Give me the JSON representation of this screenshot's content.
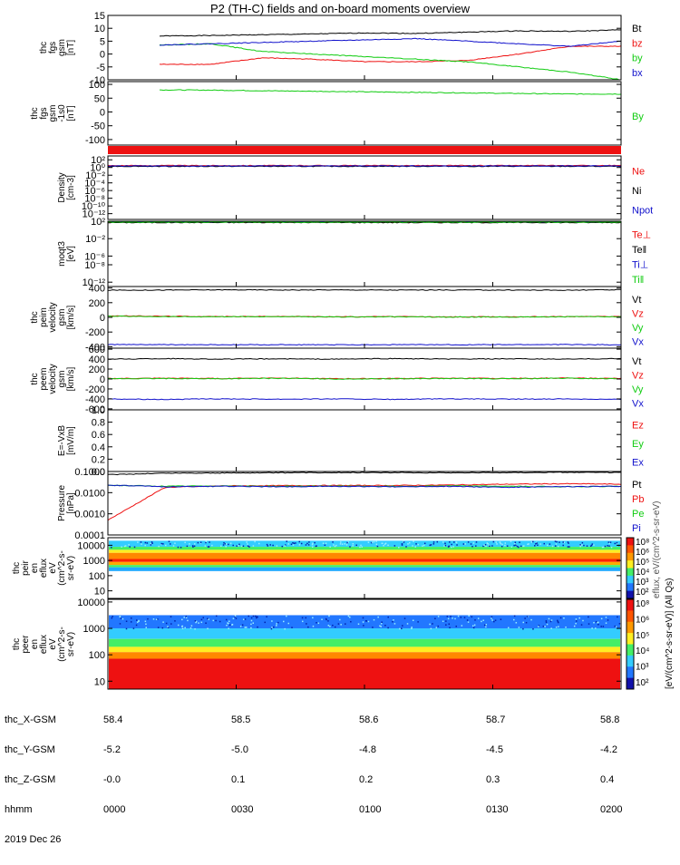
{
  "title": "P2 (TH-C) fields and on-board moments overview",
  "colors": {
    "black": "#000000",
    "red": "#ee1111",
    "green": "#11cc11",
    "blue": "#1111cc"
  },
  "footer": {
    "row_labels": [
      "thc_X-GSM",
      "thc_Y-GSM",
      "thc_Z-GSM",
      "hhmm",
      "2019 Dec 26"
    ],
    "columns": [
      [
        "58.4",
        "-5.2",
        "-0.0",
        "0000"
      ],
      [
        "58.5",
        "-5.0",
        "0.1",
        "0030"
      ],
      [
        "58.6",
        "-4.8",
        "0.2",
        "0100"
      ],
      [
        "58.7",
        "-4.5",
        "0.3",
        "0130"
      ],
      [
        "58.8",
        "-4.2",
        "0.4",
        "0200"
      ]
    ]
  },
  "colorbar": {
    "label": "[eV/(cm^2-s-sr-eV)] (All Qs)",
    "overlay_label": "eflux, eV/(cm^2-s-sr-eV)",
    "ticks": [
      "10⁸",
      "10⁶",
      "10⁵",
      "10⁴",
      "10³",
      "10²"
    ]
  },
  "chart_data": [
    {
      "type": "line",
      "ylabel": [
        "thc",
        "fgs",
        "gsm",
        "[nT]"
      ],
      "ylim": [
        -10,
        15
      ],
      "yticks": [
        "15",
        "10",
        "5",
        "0",
        "-5",
        "-10"
      ],
      "ytick_values": [
        15,
        10,
        5,
        0,
        -5,
        -10
      ],
      "series": [
        {
          "name": "Bt",
          "color": "#000000",
          "y": [
            7,
            7.2,
            7.5,
            7.8,
            8.2,
            8.0,
            8.5,
            9,
            8.8,
            9.4
          ]
        },
        {
          "name": "bz",
          "color": "#ee1111",
          "y": [
            -4,
            -4,
            -1.5,
            -2,
            -3,
            -3,
            -2.5,
            0,
            3,
            3
          ]
        },
        {
          "name": "by",
          "color": "#11cc11",
          "y": [
            3.5,
            4,
            1,
            0,
            -1,
            -2,
            -3,
            -5,
            -7,
            -10
          ]
        },
        {
          "name": "bx",
          "color": "#1111cc",
          "y": [
            3.5,
            4,
            4.5,
            5,
            5.5,
            6,
            5,
            4,
            3,
            5
          ]
        }
      ]
    },
    {
      "type": "line",
      "ylabel": [
        "thc",
        "fgs",
        "gsm",
        "-1s0",
        "[nT]"
      ],
      "ylim": [
        -120,
        110
      ],
      "yticks": [
        "100",
        "50",
        "0",
        "-50",
        "-100"
      ],
      "ytick_values": [
        100,
        50,
        0,
        -50,
        -100
      ],
      "series": [
        {
          "name": "By",
          "color": "#11cc11",
          "y": [
            80,
            79,
            77,
            75,
            73,
            71,
            69,
            67,
            65,
            65
          ]
        }
      ]
    },
    {
      "type": "line",
      "ylabel": [
        "Density",
        "[cm-3]"
      ],
      "ylim": [
        -13.5,
        3
      ],
      "yticks": [
        "10²",
        "10⁰",
        "10⁻²",
        "10⁻⁴",
        "10⁻⁶",
        "10⁻⁸",
        "10⁻¹⁰",
        "10⁻¹²"
      ],
      "ytick_values": [
        2,
        0,
        -2,
        -4,
        -6,
        -8,
        -10,
        -12
      ],
      "series": [
        {
          "name": "Ne",
          "color": "#ee1111",
          "y": [
            0.5,
            0.5,
            0.5,
            0.5,
            0.5,
            0.5,
            0.5,
            0.5,
            0.5,
            0.5
          ]
        },
        {
          "name": "Ni",
          "color": "#000000",
          "y": [
            0.3,
            0.3,
            0.3,
            0.3,
            0.3,
            0.3,
            0.3,
            0.3,
            0.3,
            0.3
          ]
        },
        {
          "name": "Npot",
          "color": "#1111cc",
          "y": [
            0.4,
            0.4,
            0.4,
            0.4,
            0.4,
            0.4,
            0.4,
            0.4,
            0.4,
            0.4
          ]
        }
      ]
    },
    {
      "type": "line",
      "ylabel": [
        "moqt3",
        "[eV]"
      ],
      "ylim": [
        -13,
        2
      ],
      "yticks": [
        "10²",
        "10⁻²",
        "10⁻⁶",
        "10⁻⁸",
        "10⁻¹²"
      ],
      "ytick_values": [
        2,
        -2,
        -6,
        -8,
        -12
      ],
      "series": [
        {
          "name": "Te⊥",
          "color": "#ee1111",
          "y": [
            1.8,
            1.8,
            1.8,
            1.8,
            1.8,
            1.8,
            1.8,
            1.8,
            1.8,
            1.8
          ]
        },
        {
          "name": "Te‖",
          "color": "#000000",
          "y": [
            1.7,
            1.7,
            1.7,
            1.7,
            1.7,
            1.7,
            1.7,
            1.7,
            1.7,
            1.7
          ]
        },
        {
          "name": "Ti⊥",
          "color": "#1111cc",
          "y": [
            1.9,
            1.9,
            1.9,
            1.9,
            1.9,
            1.9,
            1.9,
            1.9,
            1.9,
            1.9
          ]
        },
        {
          "name": "Ti‖",
          "color": "#11cc11",
          "y": [
            1.8,
            1.8,
            1.8,
            1.8,
            1.8,
            1.8,
            1.8,
            1.8,
            1.8,
            1.8
          ]
        }
      ]
    },
    {
      "type": "line",
      "ylabel": [
        "thc",
        "peim",
        "velocity",
        "gsm",
        "[km/s]"
      ],
      "ylim": [
        -420,
        420
      ],
      "yticks": [
        "400",
        "200",
        "0",
        "-200",
        "-400"
      ],
      "ytick_values": [
        400,
        200,
        0,
        -200,
        -400
      ],
      "series": [
        {
          "name": "Vt",
          "color": "#000000",
          "y": [
            370,
            372,
            375,
            373,
            374,
            372,
            373,
            372,
            370,
            375
          ]
        },
        {
          "name": "Vz",
          "color": "#ee1111",
          "y": [
            20,
            15,
            10,
            12,
            8,
            10,
            5,
            8,
            10,
            12
          ]
        },
        {
          "name": "Vy",
          "color": "#11cc11",
          "y": [
            15,
            10,
            8,
            10,
            5,
            8,
            3,
            5,
            8,
            10
          ]
        },
        {
          "name": "Vx",
          "color": "#1111cc",
          "y": [
            -370,
            -372,
            -374,
            -373,
            -374,
            -372,
            -373,
            -372,
            -370,
            -375
          ]
        }
      ]
    },
    {
      "type": "line",
      "ylabel": [
        "thc",
        "peem",
        "velocity",
        "gsm",
        "[km/s]"
      ],
      "ylim": [
        -620,
        620
      ],
      "yticks": [
        "600",
        "400",
        "200",
        "0",
        "-200",
        "-400",
        "-600"
      ],
      "ytick_values": [
        600,
        400,
        200,
        0,
        -200,
        -400,
        -600
      ],
      "series": [
        {
          "name": "Vt",
          "color": "#000000",
          "y": [
            400,
            410,
            400,
            405,
            400,
            410,
            400,
            405,
            400,
            410
          ]
        },
        {
          "name": "Vz",
          "color": "#ee1111",
          "y": [
            10,
            15,
            10,
            20,
            5,
            10,
            15,
            10,
            20,
            10
          ]
        },
        {
          "name": "Vy",
          "color": "#11cc11",
          "y": [
            5,
            10,
            5,
            15,
            0,
            5,
            10,
            5,
            15,
            5
          ]
        },
        {
          "name": "Vx",
          "color": "#1111cc",
          "y": [
            -400,
            -410,
            -400,
            -405,
            -400,
            -410,
            -400,
            -405,
            -400,
            -410
          ]
        }
      ]
    },
    {
      "type": "line",
      "ylabel": [
        "E=-VxB",
        "[mV/m]"
      ],
      "ylim": [
        0,
        1
      ],
      "yticks": [
        "1.0",
        "0.8",
        "0.6",
        "0.4",
        "0.2",
        "0.0"
      ],
      "ytick_values": [
        1.0,
        0.8,
        0.6,
        0.4,
        0.2,
        0.0
      ],
      "series": [
        {
          "name": "Ez",
          "color": "#ee1111",
          "y": []
        },
        {
          "name": "Ey",
          "color": "#11cc11",
          "y": []
        },
        {
          "name": "Ex",
          "color": "#1111cc",
          "y": []
        }
      ]
    },
    {
      "type": "line",
      "ylabel": [
        "Pressure",
        "[nPa]"
      ],
      "ylim": [
        -4,
        -1
      ],
      "yticks": [
        "0.1000",
        "0.0100",
        "0.0010",
        "0.0001"
      ],
      "ytick_values": [
        -1,
        -2,
        -3,
        -4
      ],
      "series": [
        {
          "name": "Pt",
          "color": "#000000",
          "y": [
            -1.15,
            -1.08,
            -1.07,
            -1.06,
            -1.05,
            -1.05,
            -1.06,
            -1.05,
            -1.04,
            -1.05
          ]
        },
        {
          "name": "Pb",
          "color": "#ee1111",
          "y": [
            -3.3,
            -1.75,
            -1.68,
            -1.67,
            -1.66,
            -1.66,
            -1.64,
            -1.6,
            -1.58,
            -1.6
          ]
        },
        {
          "name": "Pe",
          "color": "#11cc11",
          "y": [
            -1.65,
            -1.7,
            -1.68,
            -1.7,
            -1.69,
            -1.7,
            -1.68,
            -1.7,
            -1.72,
            -1.7
          ]
        },
        {
          "name": "Pi",
          "color": "#1111cc",
          "y": [
            -1.65,
            -1.72,
            -1.7,
            -1.72,
            -1.7,
            -1.72,
            -1.7,
            -1.75,
            -1.72,
            -1.7
          ]
        }
      ]
    },
    {
      "type": "heatmap",
      "ylabel": [
        "thc",
        "peir",
        "en",
        "eflux",
        "eV",
        "(cm^2-s-",
        "sr-eV)"
      ],
      "ylim": [
        0.5,
        4.5
      ],
      "yticks": [
        "10000",
        "1000",
        "100",
        "10"
      ],
      "ytick_values": [
        4,
        3,
        2,
        1
      ],
      "bands": [
        {
          "from": 3.9,
          "to": 4.3,
          "color": "#33ccff"
        },
        {
          "from": 3.7,
          "to": 3.9,
          "color": "#44ee66"
        },
        {
          "from": 3.5,
          "to": 3.7,
          "color": "#ffee22"
        },
        {
          "from": 3.1,
          "to": 3.5,
          "color": "#ff8800"
        },
        {
          "from": 2.9,
          "to": 3.1,
          "color": "#ff2200"
        },
        {
          "from": 2.7,
          "to": 2.9,
          "color": "#ffaa00"
        },
        {
          "from": 2.55,
          "to": 2.7,
          "color": "#44ee66"
        },
        {
          "from": 2.3,
          "to": 2.55,
          "color": "#22aaff"
        }
      ]
    },
    {
      "type": "heatmap",
      "ylabel": [
        "thc",
        "peer",
        "en",
        "eflux",
        "eV",
        "(cm^2-s-",
        "sr-eV)"
      ],
      "ylim": [
        0.7,
        4.1
      ],
      "yticks": [
        "10000",
        "1000",
        "100",
        "10"
      ],
      "ytick_values": [
        4,
        3,
        2,
        1
      ],
      "bands": [
        {
          "from": 3.0,
          "to": 3.5,
          "color": "#2277ff"
        },
        {
          "from": 2.6,
          "to": 3.0,
          "color": "#33ccff"
        },
        {
          "from": 2.3,
          "to": 2.6,
          "color": "#44ee66"
        },
        {
          "from": 2.1,
          "to": 2.3,
          "color": "#ffee22"
        },
        {
          "from": 1.85,
          "to": 2.1,
          "color": "#ff8800"
        },
        {
          "from": 0.7,
          "to": 1.85,
          "color": "#ee1111"
        }
      ]
    }
  ]
}
